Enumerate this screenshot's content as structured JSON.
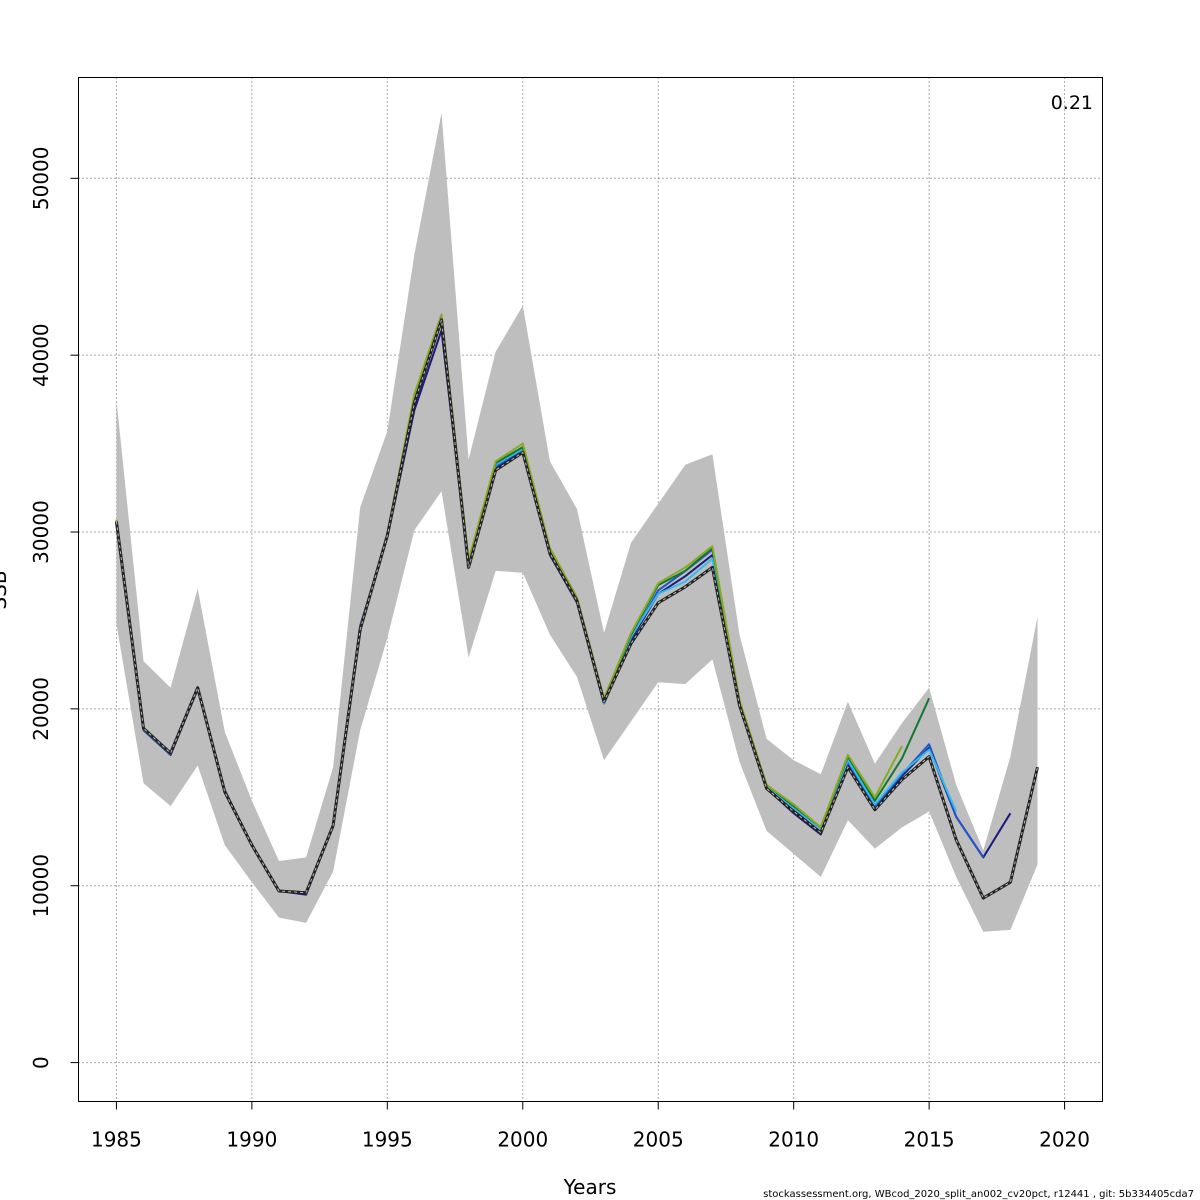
{
  "chart_data": {
    "type": "line",
    "title": "",
    "xlabel": "Years",
    "ylabel": "SSB",
    "xlim": [
      1983.6,
      2021.4
    ],
    "ylim": [
      -2200,
      55700
    ],
    "xticks": [
      1985,
      1990,
      1995,
      2000,
      2005,
      2010,
      2015,
      2020
    ],
    "yticks": [
      0,
      10000,
      20000,
      30000,
      40000,
      50000
    ],
    "grid": true,
    "corner_annotation": "0.21",
    "footer": "stockassessment.org, WBcod_2020_split_an002_cv20pct, r12441 , git: 5b334405cda7",
    "colors": {
      "band": "#bebebe",
      "base": "#222222",
      "navy": "#1a1a7a",
      "blue": "#2255cc",
      "cyan": "#33bbee",
      "green": "#117733",
      "olive": "#88aa22"
    },
    "confidence_band": {
      "years": [
        1985,
        1986,
        1987,
        1988,
        1989,
        1990,
        1991,
        1992,
        1993,
        1994,
        1995,
        1996,
        1997,
        1998,
        1999,
        2000,
        2001,
        2002,
        2003,
        2004,
        2005,
        2006,
        2007,
        2008,
        2009,
        2010,
        2011,
        2012,
        2013,
        2014,
        2015,
        2016,
        2017,
        2018,
        2019
      ],
      "lower": [
        24800,
        15800,
        14500,
        16800,
        12300,
        10200,
        8200,
        7900,
        10800,
        18800,
        24000,
        30100,
        32300,
        22900,
        27800,
        27700,
        24200,
        21800,
        17100,
        19300,
        21500,
        21400,
        22800,
        17000,
        13100,
        11800,
        10500,
        13700,
        12100,
        13300,
        14200,
        10500,
        7400,
        7500,
        11200
      ],
      "upper": [
        37500,
        22700,
        21200,
        26800,
        18700,
        14800,
        11400,
        11600,
        16700,
        31400,
        35700,
        45700,
        53700,
        34100,
        40200,
        42800,
        34000,
        31300,
        24300,
        29400,
        31600,
        33800,
        34400,
        24200,
        18300,
        17100,
        16300,
        20400,
        16900,
        19200,
        21200,
        15700,
        12000,
        17300,
        25200
      ]
    },
    "series": [
      {
        "role": "base",
        "style": "dashed",
        "years": [
          1985,
          1986,
          1987,
          1988,
          1989,
          1990,
          1991,
          1992,
          1993,
          1994,
          1995,
          1996,
          1997,
          1998,
          1999,
          2000,
          2001,
          2002,
          2003,
          2004,
          2005,
          2006,
          2007,
          2008,
          2009,
          2010,
          2011,
          2012,
          2013,
          2014,
          2015,
          2016,
          2017,
          2018,
          2019
        ],
        "values": [
          30600,
          18900,
          17500,
          21200,
          15300,
          12300,
          9700,
          9600,
          13400,
          24500,
          29800,
          37300,
          42000,
          28000,
          33500,
          34500,
          28800,
          26100,
          20400,
          23700,
          26000,
          26900,
          28000,
          20200,
          15500,
          14200,
          13000,
          16700,
          14300,
          16000,
          17300,
          12600,
          9300,
          10200,
          16700
        ]
      },
      {
        "role": "peel-5",
        "color_key": "navy",
        "years": [
          1985,
          1986,
          1987,
          1988,
          1989,
          1990,
          1991,
          1992,
          1993,
          1994,
          1995,
          1996,
          1997,
          1998,
          1999,
          2000,
          2001,
          2002,
          2003,
          2004,
          2005,
          2006,
          2007,
          2008,
          2009,
          2010,
          2011,
          2012,
          2013,
          2014,
          2015,
          2016,
          2017,
          2018
        ],
        "values": [
          30500,
          18800,
          17400,
          21100,
          15400,
          12300,
          9700,
          9500,
          13400,
          24700,
          29700,
          36900,
          41400,
          28100,
          33600,
          34700,
          28700,
          26000,
          20300,
          23900,
          26500,
          27500,
          28700,
          20200,
          15500,
          14100,
          12900,
          16900,
          14400,
          16200,
          17800,
          13900,
          11600,
          14100
        ]
      },
      {
        "role": "peel-4",
        "color_key": "blue",
        "years": [
          1985,
          1986,
          1987,
          1988,
          1989,
          1990,
          1991,
          1992,
          1993,
          1994,
          1995,
          1996,
          1997,
          1998,
          1999,
          2000,
          2001,
          2002,
          2003,
          2004,
          2005,
          2006,
          2007,
          2008,
          2009,
          2010,
          2011,
          2012,
          2013,
          2014,
          2015,
          2016,
          2017
        ],
        "values": [
          30550,
          18850,
          17450,
          21150,
          15350,
          12300,
          9700,
          9600,
          13400,
          24600,
          29800,
          37400,
          41900,
          28100,
          33700,
          34700,
          28800,
          26100,
          20400,
          24000,
          26700,
          27800,
          29000,
          20300,
          15600,
          14300,
          13000,
          17000,
          14500,
          16300,
          18000,
          13900,
          11600
        ]
      },
      {
        "role": "peel-3",
        "color_key": "cyan",
        "years": [
          1985,
          1986,
          1987,
          1988,
          1989,
          1990,
          1991,
          1992,
          1993,
          1994,
          1995,
          1996,
          1997,
          1998,
          1999,
          2000,
          2001,
          2002,
          2003,
          2004,
          2005,
          2006,
          2007,
          2008,
          2009,
          2010,
          2011,
          2012,
          2013,
          2014,
          2015,
          2016
        ],
        "values": [
          30550,
          18850,
          17450,
          21150,
          15350,
          12300,
          9700,
          9600,
          13400,
          24600,
          29800,
          37500,
          42000,
          28200,
          33800,
          34700,
          28800,
          26100,
          20300,
          24100,
          26500,
          27200,
          28500,
          20300,
          15600,
          14400,
          13200,
          17100,
          14600,
          16400,
          17700,
          14200
        ]
      },
      {
        "role": "peel-2",
        "color_key": "green",
        "years": [
          1985,
          1986,
          1987,
          1988,
          1989,
          1990,
          1991,
          1992,
          1993,
          1994,
          1995,
          1996,
          1997,
          1998,
          1999,
          2000,
          2001,
          2002,
          2003,
          2004,
          2005,
          2006,
          2007,
          2008,
          2009,
          2010,
          2011,
          2012,
          2013,
          2014,
          2015
        ],
        "values": [
          30600,
          18900,
          17500,
          21200,
          15300,
          12300,
          9700,
          9600,
          13400,
          24500,
          29800,
          37700,
          42200,
          28300,
          33900,
          34800,
          29000,
          26200,
          20500,
          24200,
          27000,
          27800,
          29100,
          20400,
          15700,
          14500,
          13300,
          17300,
          14800,
          17200,
          20600
        ]
      },
      {
        "role": "peel-1",
        "color_key": "olive",
        "years": [
          1985,
          1986,
          1987,
          1988,
          1989,
          1990,
          1991,
          1992,
          1993,
          1994,
          1995,
          1996,
          1997,
          1998,
          1999,
          2000,
          2001,
          2002,
          2003,
          2004,
          2005,
          2006,
          2007,
          2008,
          2009,
          2010,
          2011,
          2012,
          2013,
          2014
        ],
        "values": [
          30700,
          18900,
          17500,
          21200,
          15300,
          12300,
          9700,
          9600,
          13400,
          24500,
          29900,
          37800,
          42300,
          28400,
          34000,
          35000,
          29100,
          26300,
          20600,
          24300,
          27100,
          28000,
          29200,
          20500,
          15700,
          14600,
          13300,
          17400,
          15000,
          17900
        ]
      }
    ]
  }
}
